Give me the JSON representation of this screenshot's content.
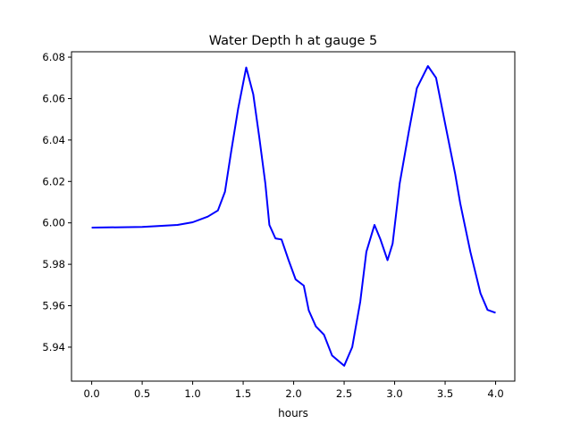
{
  "chart_data": {
    "type": "line",
    "title": "Water Depth h at gauge 5",
    "xlabel": "hours",
    "ylabel": "",
    "xlim": [
      -0.2,
      4.19
    ],
    "ylim": [
      5.9236,
      6.0826
    ],
    "xticks": [
      0.0,
      0.5,
      1.0,
      1.5,
      2.0,
      2.5,
      3.0,
      3.5,
      4.0
    ],
    "xtick_labels": [
      "0.0",
      "0.5",
      "1.0",
      "1.5",
      "2.0",
      "2.5",
      "3.0",
      "3.5",
      "4.0"
    ],
    "yticks": [
      5.94,
      5.96,
      5.98,
      6.0,
      6.02,
      6.04,
      6.06,
      6.08
    ],
    "ytick_labels": [
      "5.94",
      "5.96",
      "5.98",
      "6.00",
      "6.02",
      "6.04",
      "6.06",
      "6.08"
    ],
    "grid": false,
    "series": [
      {
        "name": "h",
        "color": "#0000ff",
        "x": [
          0,
          0.5,
          0.85,
          1.0,
          1.15,
          1.25,
          1.32,
          1.38,
          1.45,
          1.53,
          1.6,
          1.66,
          1.72,
          1.76,
          1.82,
          1.88,
          1.95,
          2.02,
          2.1,
          2.15,
          2.22,
          2.3,
          2.38,
          2.5,
          2.58,
          2.66,
          2.72,
          2.8,
          2.86,
          2.93,
          2.98,
          3.05,
          3.14,
          3.22,
          3.33,
          3.41,
          3.5,
          3.6,
          3.65,
          3.75,
          3.85,
          3.92,
          4.0
        ],
        "y": [
          5.9977,
          5.998,
          5.999,
          6.0003,
          6.003,
          6.006,
          6.015,
          6.034,
          6.055,
          6.075,
          6.062,
          6.041,
          6.019,
          5.999,
          5.9925,
          5.992,
          5.982,
          5.9727,
          5.9697,
          5.9577,
          5.95,
          5.946,
          5.936,
          5.931,
          5.94,
          5.962,
          5.986,
          5.999,
          5.992,
          5.982,
          5.99,
          6.019,
          6.044,
          6.065,
          6.0757,
          6.07,
          6.048,
          6.0236,
          6.0093,
          5.986,
          5.966,
          5.958,
          5.9566
        ]
      }
    ]
  }
}
